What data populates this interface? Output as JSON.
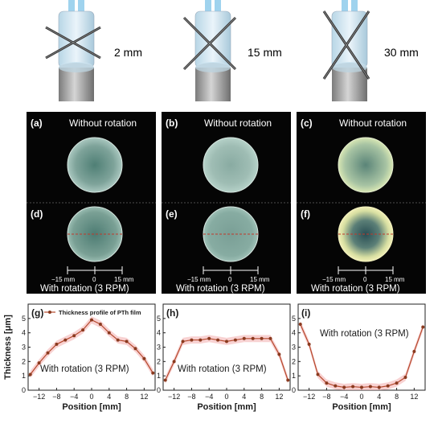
{
  "setups": [
    {
      "distance": "2 mm"
    },
    {
      "distance": "15 mm"
    },
    {
      "distance": "30 mm"
    }
  ],
  "photos": {
    "top_row": [
      {
        "tag": "(a)",
        "title": "Without rotation"
      },
      {
        "tag": "(b)",
        "title": "Without rotation"
      },
      {
        "tag": "(c)",
        "title": "Without rotation"
      }
    ],
    "bottom_row": [
      {
        "tag": "(d)",
        "caption": "With rotation (3 RPM)"
      },
      {
        "tag": "(e)",
        "caption": "With rotation (3 RPM)"
      },
      {
        "tag": "(f)",
        "caption": "With rotation (3 RPM)"
      }
    ],
    "scale_labels": [
      "−15 mm",
      "0",
      "15 mm"
    ]
  },
  "chart_data": [
    {
      "type": "line",
      "panel": "(g)",
      "annotation": "With rotation (3 RPM)",
      "legend": "Thickness profile of PTh film",
      "legend_position": "top-left",
      "xlabel": "Position [mm]",
      "ylabel": "Thickness [μm]",
      "xlim": [
        -14.5,
        14.5
      ],
      "ylim": [
        0,
        6
      ],
      "xticks": [
        "-12",
        "-8",
        "-4",
        "0",
        "4",
        "8",
        "12"
      ],
      "yticks": [
        "0",
        "1",
        "2",
        "3",
        "4",
        "5"
      ],
      "grid": false,
      "series": [
        {
          "name": "Thickness profile of PTh film",
          "x": [
            -14,
            -12,
            -10,
            -8,
            -6,
            -4,
            -2,
            0,
            2,
            4,
            6,
            8,
            10,
            12,
            14
          ],
          "y": [
            1.1,
            1.9,
            2.6,
            3.2,
            3.5,
            3.8,
            4.2,
            4.9,
            4.6,
            4.0,
            3.5,
            3.4,
            2.9,
            2.2,
            1.2
          ]
        }
      ]
    },
    {
      "type": "line",
      "panel": "(h)",
      "annotation": "With rotation (3 RPM)",
      "xlabel": "Position [mm]",
      "xlim": [
        -14.5,
        14.5
      ],
      "ylim": [
        0,
        6
      ],
      "xticks": [
        "-12",
        "-8",
        "-4",
        "0",
        "4",
        "8",
        "12"
      ],
      "yticks": [
        "0",
        "1",
        "2",
        "3",
        "4",
        "5"
      ],
      "grid": false,
      "series": [
        {
          "x": [
            -14,
            -12,
            -10,
            -8,
            -6,
            -4,
            -2,
            0,
            2,
            4,
            6,
            8,
            10,
            12,
            14
          ],
          "y": [
            0.7,
            2.0,
            3.4,
            3.5,
            3.5,
            3.6,
            3.5,
            3.4,
            3.5,
            3.6,
            3.6,
            3.6,
            3.6,
            2.5,
            0.7
          ]
        }
      ]
    },
    {
      "type": "line",
      "panel": "(i)",
      "annotation": "With rotation (3 RPM)",
      "xlabel": "Position [mm]",
      "xlim": [
        -14.5,
        14.5
      ],
      "ylim": [
        0,
        6
      ],
      "xticks": [
        "-12",
        "-8",
        "-4",
        "0",
        "4",
        "8",
        "12"
      ],
      "yticks": [
        "0",
        "1",
        "2",
        "3",
        "4",
        "5"
      ],
      "grid": false,
      "series": [
        {
          "x": [
            -14,
            -12,
            -10,
            -8,
            -6,
            -4,
            -2,
            0,
            2,
            4,
            6,
            8,
            10,
            12,
            14
          ],
          "y": [
            4.6,
            3.2,
            1.1,
            0.5,
            0.3,
            0.2,
            0.25,
            0.2,
            0.25,
            0.2,
            0.3,
            0.5,
            0.9,
            2.7,
            4.4
          ]
        }
      ]
    }
  ],
  "colors": {
    "line": "#b5482c",
    "marker": "#8a3a1f",
    "band": "#f3b4b4",
    "photo_bg": "#050505",
    "dashed_line": "#c0392b"
  }
}
